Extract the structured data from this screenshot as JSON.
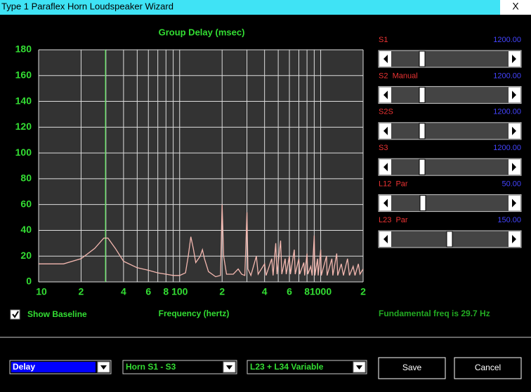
{
  "window": {
    "title": "Type 1 Paraflex Horn Loudspeaker Wizard",
    "close": "X"
  },
  "chart_data": {
    "type": "line",
    "title": "Group Delay (msec)",
    "x_label": "Frequency (hertz)",
    "log_x": true,
    "grid": true,
    "xlim": [
      10,
      2000
    ],
    "ylim": [
      0,
      180
    ],
    "xticks": [
      {
        "value": 10,
        "label": "10"
      },
      {
        "value": 20,
        "label": "2"
      },
      {
        "value": 40,
        "label": "4"
      },
      {
        "value": 60,
        "label": "6"
      },
      {
        "value": 80,
        "label": "8"
      },
      {
        "value": 100,
        "label": "100"
      },
      {
        "value": 200,
        "label": "2"
      },
      {
        "value": 400,
        "label": "4"
      },
      {
        "value": 600,
        "label": "6"
      },
      {
        "value": 800,
        "label": "8"
      },
      {
        "value": 1000,
        "label": "1000"
      },
      {
        "value": 2000,
        "label": "2"
      }
    ],
    "xminor": [
      30,
      50,
      70,
      90,
      300,
      500,
      700,
      900
    ],
    "yticks": [
      0,
      20,
      40,
      60,
      80,
      100,
      120,
      140,
      160,
      180
    ],
    "marker_x": 29.7,
    "marker_color": "#33dd33",
    "series": [
      {
        "name": "Group Delay",
        "color": "#f4b8b0",
        "x": [
          10,
          15,
          20,
          25,
          29,
          31,
          35,
          40,
          50,
          60,
          70,
          80,
          90,
          100,
          110,
          115,
          120,
          125,
          130,
          140,
          145,
          150,
          160,
          180,
          195,
          200,
          205,
          215,
          240,
          260,
          275,
          290,
          300,
          305,
          320,
          350,
          360,
          400,
          410,
          450,
          460,
          480,
          490,
          520,
          530,
          560,
          570,
          600,
          610,
          650,
          660,
          700,
          710,
          760,
          770,
          800,
          810,
          850,
          870,
          900,
          910,
          950,
          960,
          1000,
          1010,
          1100,
          1110,
          1200,
          1220,
          1300,
          1320,
          1400,
          1450,
          1550,
          1600,
          1700,
          1750,
          1850,
          1900,
          2000
        ],
        "values": [
          14,
          14,
          18,
          26,
          34,
          34,
          26,
          16,
          11,
          9,
          7,
          6,
          5,
          5,
          7,
          20,
          35,
          26,
          15,
          20,
          25,
          18,
          8,
          4,
          5,
          60,
          20,
          6,
          6,
          10,
          6,
          5,
          54,
          10,
          5,
          20,
          6,
          14,
          5,
          18,
          5,
          30,
          6,
          32,
          6,
          18,
          6,
          20,
          6,
          25,
          6,
          18,
          6,
          15,
          5,
          22,
          6,
          12,
          5,
          36,
          5,
          18,
          5,
          25,
          5,
          20,
          5,
          18,
          5,
          22,
          5,
          14,
          5,
          18,
          5,
          12,
          5,
          14,
          6,
          10
        ]
      }
    ]
  },
  "sliders": [
    {
      "label": "S1",
      "value": "1200.00"
    },
    {
      "label": "S2  Manual",
      "value": "1200.00"
    },
    {
      "label": "S2S",
      "value": "1200.00"
    },
    {
      "label": "S3",
      "value": "1200.00"
    },
    {
      "label": "L12  Par",
      "value": "50.00"
    },
    {
      "label": "L23  Par",
      "value": "150.00"
    }
  ],
  "checkbox": {
    "label": "Show Baseline",
    "checked": true
  },
  "status": "Fundamental freq is 29.7 Hz",
  "dropdowns": [
    "Delay",
    "Horn S1 - S3",
    "L23 + L34 Variable"
  ],
  "buttons": [
    "Save",
    "Cancel"
  ]
}
